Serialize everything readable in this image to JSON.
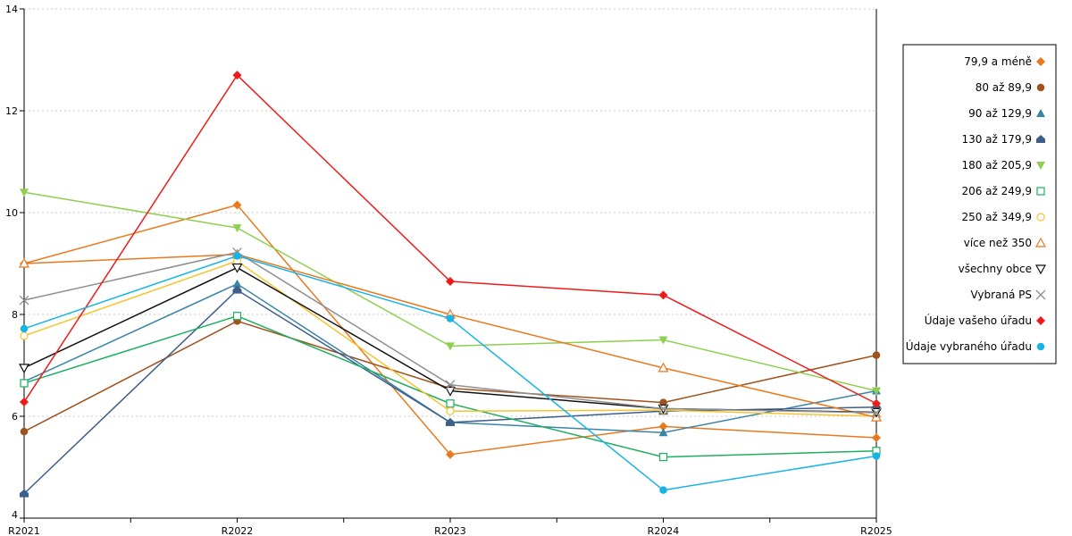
{
  "chart_data": {
    "type": "line",
    "categories": [
      "R2021",
      "R2022",
      "R2023",
      "R2024",
      "R2025"
    ],
    "ylim": [
      4,
      14
    ],
    "yticks": [
      4,
      6,
      8,
      10,
      12,
      14
    ],
    "grid": "horizontal dashed",
    "legend_position": "right",
    "series": [
      {
        "name": "79,9 a méně",
        "color": "#e8791e",
        "marker": "diamond",
        "values": [
          9.0,
          10.15,
          5.25,
          5.8,
          5.58
        ]
      },
      {
        "name": "80 až 89,9",
        "color": "#a0521c",
        "marker": "circle",
        "values": [
          5.7,
          7.87,
          6.55,
          6.27,
          7.2
        ]
      },
      {
        "name": "90 až 129,9",
        "color": "#3a84a6",
        "marker": "triangle",
        "values": [
          6.68,
          8.6,
          5.88,
          5.68,
          6.5
        ]
      },
      {
        "name": "130 až 179,9",
        "color": "#3d5f8c",
        "marker": "house",
        "values": [
          4.48,
          8.48,
          5.88,
          6.1,
          6.18
        ]
      },
      {
        "name": "180 až 205,9",
        "color": "#8fcf50",
        "marker": "triangle-down",
        "values": [
          10.4,
          9.7,
          7.38,
          7.5,
          6.5
        ]
      },
      {
        "name": "206 až 249,9",
        "color": "#1fae5f",
        "marker": "square-open",
        "values": [
          6.65,
          7.97,
          6.25,
          5.2,
          5.32
        ]
      },
      {
        "name": "250 až 349,9",
        "color": "#f6c431",
        "marker": "circle-open",
        "values": [
          7.58,
          9.05,
          6.1,
          6.12,
          6.0
        ]
      },
      {
        "name": "více než 350",
        "color": "#e8791e",
        "marker": "triangle-open",
        "values": [
          9.0,
          9.18,
          8.0,
          6.95,
          5.98
        ]
      },
      {
        "name": "všechny obce",
        "color": "#111111",
        "marker": "triangle-down-open",
        "values": [
          6.95,
          8.92,
          6.5,
          6.15,
          6.08
        ]
      },
      {
        "name": "Vybraná PS",
        "color": "#8f8f8f",
        "marker": "x",
        "values": [
          8.28,
          9.22,
          6.62,
          6.15,
          6.07
        ]
      },
      {
        "name": "Údaje vašeho úřadu",
        "color": "#ee1b1b",
        "marker": "diamond",
        "values": [
          6.28,
          12.7,
          8.65,
          8.38,
          6.25
        ]
      },
      {
        "name": "Údaje vybraného úřadu",
        "color": "#19b4e6",
        "marker": "circle",
        "values": [
          7.72,
          9.15,
          7.92,
          4.55,
          5.22
        ]
      }
    ]
  }
}
